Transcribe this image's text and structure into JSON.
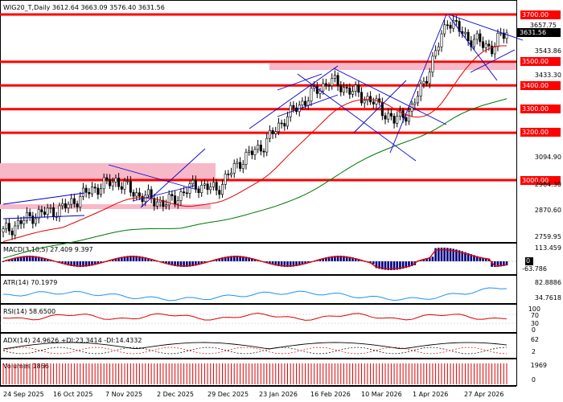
{
  "main": {
    "title": "WIG20_T,Daily  3612.64 3663.09 3576.40 3631.56",
    "current_price": "3631.56",
    "price_mark": "3657.75",
    "levels": [
      "3700.00",
      "3500.00",
      "3400.00",
      "3300.00",
      "3200.00",
      "3000.00"
    ],
    "price_scale": [
      "3543.86",
      "3433.30",
      "3094.90",
      "2984.30",
      "2870.60",
      "2759.95"
    ]
  },
  "macd": {
    "title": "MACD(3,10,5) 27.409 9.397",
    "scale": [
      "113.459",
      "0.00",
      "-63.786"
    ]
  },
  "atr": {
    "title": "ATR(14) 70.1979",
    "scale": [
      "82.8886",
      "34.7618"
    ]
  },
  "rsi": {
    "title": "RSI(14) 58.6500",
    "scale": [
      "100",
      "70",
      "30",
      "0"
    ]
  },
  "adx": {
    "title": "ADX(14) 24.9626 +DI:23.3414 -DI:14.4332",
    "scale": [
      "62",
      "2"
    ]
  },
  "volumes": {
    "title": "Volumes 1866",
    "scale": [
      "1969",
      "0"
    ]
  },
  "time_axis": [
    "24 Sep 2025",
    "16 Oct 2025",
    "7 Nov 2025",
    "2 Dec 2025",
    "29 Dec 2025",
    "23 Jan 2026",
    "16 Feb 2026",
    "10 Mar 2026",
    "1 Apr 2026",
    "27 Apr 2026"
  ],
  "colors": {
    "level_line": "#ff0000",
    "zone": "#f7b8c8",
    "trendline": "#0000cc",
    "ma_red": "#e00000",
    "ma_green": "#007700",
    "macd_hist": "#000080",
    "atr_line": "#1e90ff",
    "rsi_line": "#dd0000",
    "volume_bar": "#dd0000"
  }
}
